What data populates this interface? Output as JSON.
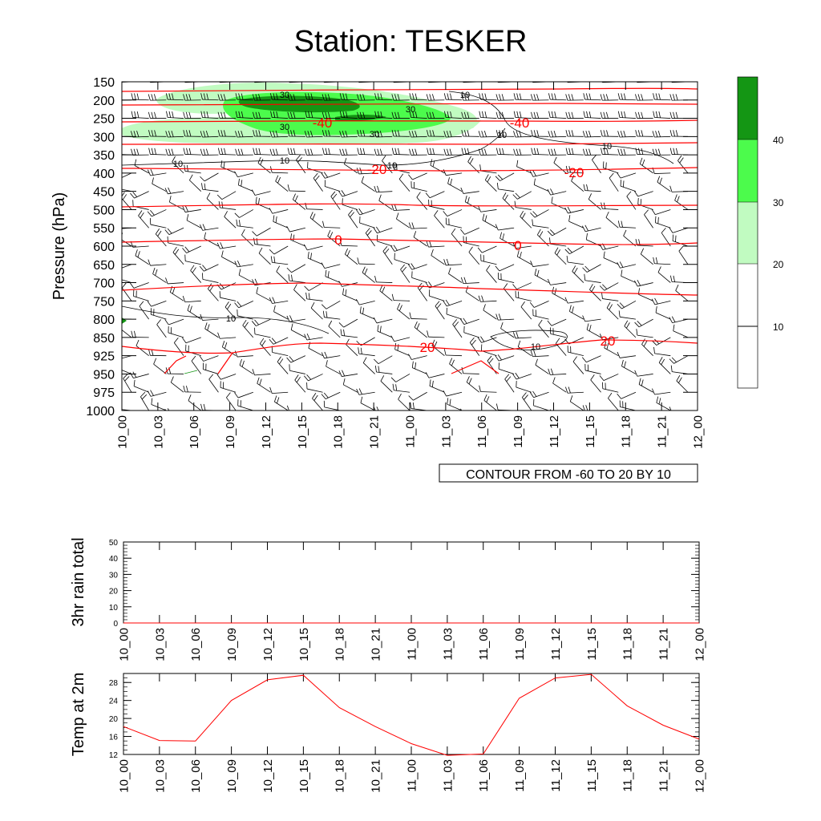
{
  "title": "Station: TESKER",
  "time_labels": [
    "10_00",
    "10_03",
    "10_06",
    "10_09",
    "10_12",
    "10_15",
    "10_18",
    "10_21",
    "11_00",
    "11_03",
    "11_06",
    "11_09",
    "11_12",
    "11_15",
    "11_18",
    "11_21",
    "12_00"
  ],
  "colors": {
    "temp_line": "#ff0000",
    "speed_line": "#000000",
    "fill_20_30": "#c1fbc1",
    "fill_30_40": "#4cfb4c",
    "fill_40_plus": "#149614",
    "axis": "#000000"
  },
  "chart_data": [
    {
      "type": "contour",
      "ylabel": "Pressure (hPa)",
      "y_ticks": [
        "150",
        "200",
        "250",
        "300",
        "350",
        "400",
        "450",
        "500",
        "550",
        "600",
        "650",
        "700",
        "750",
        "800",
        "850",
        "925",
        "950",
        "975",
        "1000"
      ],
      "contour_info": "CONTOUR FROM -60 TO 20 BY 10",
      "colorbar": {
        "labels": [
          "10",
          "20",
          "30",
          "40"
        ]
      },
      "temperature_contour_labels": [
        "-40",
        "-40",
        "-20",
        "-20",
        "0",
        "0",
        "20",
        "20"
      ],
      "wind_speed_contour_labels": [
        "30",
        "30",
        "30",
        "30",
        "10",
        "10",
        "10",
        "10",
        "10",
        "10",
        "10",
        "10"
      ]
    },
    {
      "type": "line",
      "ylabel": "3hr rain total",
      "y_ticks": [
        "0",
        "10",
        "20",
        "30",
        "40",
        "50"
      ],
      "ylim": [
        0,
        50
      ],
      "x": [
        "10_00",
        "10_03",
        "10_06",
        "10_09",
        "10_12",
        "10_15",
        "10_18",
        "10_21",
        "11_00",
        "11_03",
        "11_06",
        "11_09",
        "11_12",
        "11_15",
        "11_18",
        "11_21",
        "12_00"
      ],
      "values": [
        0,
        0,
        0,
        0,
        0,
        0,
        0,
        0,
        0,
        0,
        0,
        0,
        0,
        0,
        0,
        0,
        0
      ]
    },
    {
      "type": "line",
      "ylabel": "Temp at 2m",
      "y_ticks": [
        "12",
        "16",
        "20",
        "24",
        "28"
      ],
      "ylim": [
        12,
        30
      ],
      "x": [
        "10_00",
        "10_03",
        "10_06",
        "10_09",
        "10_12",
        "10_15",
        "10_18",
        "10_21",
        "11_00",
        "11_03",
        "11_06",
        "11_09",
        "11_12",
        "11_15",
        "11_18",
        "11_21",
        "12_00"
      ],
      "values": [
        18.2,
        15.1,
        15.0,
        24.0,
        28.6,
        29.6,
        22.4,
        18.2,
        14.4,
        11.8,
        12.1,
        24.5,
        29.0,
        29.8,
        22.8,
        18.5,
        15.4
      ]
    }
  ]
}
